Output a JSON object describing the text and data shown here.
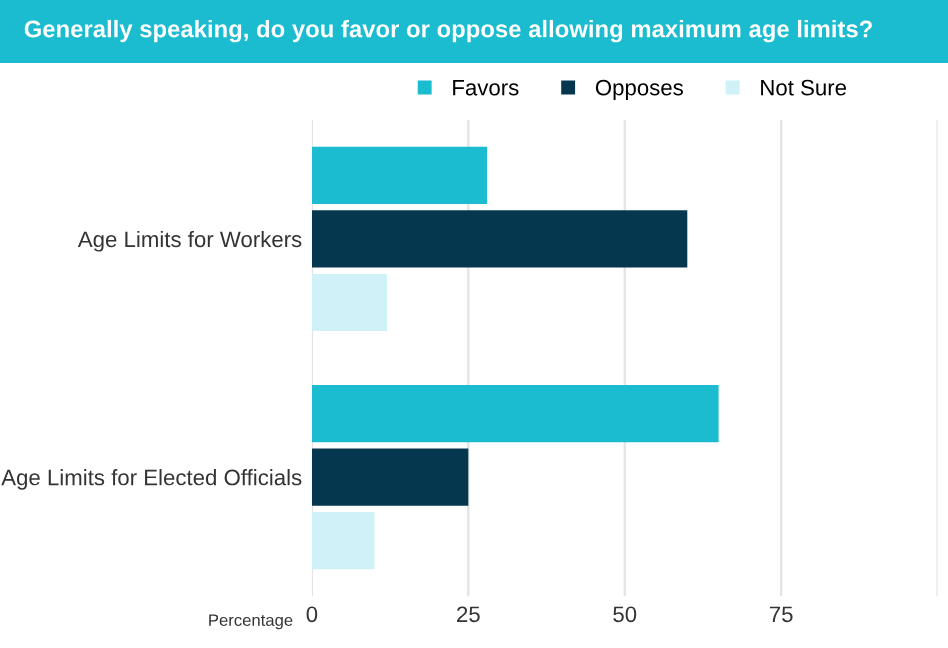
{
  "chart_data": {
    "type": "bar",
    "orientation": "horizontal",
    "title": "Generally speaking, do you favor or oppose allowing maximum age limits?",
    "xlabel": "Percentage",
    "categories": [
      "Age Limits for Workers",
      "Age Limits for Elected Officials"
    ],
    "series": [
      {
        "name": "Favors",
        "color": "#1bbccf",
        "values": [
          28,
          65
        ]
      },
      {
        "name": "Opposes",
        "color": "#05374f",
        "values": [
          60,
          25
        ]
      },
      {
        "name": "Not Sure",
        "color": "#d0f1f7",
        "values": [
          12,
          10
        ]
      }
    ],
    "xlim": [
      0,
      100
    ],
    "xticks": [
      0,
      25,
      50,
      75,
      {
        "value": 100,
        "label": null
      }
    ],
    "grid": "x",
    "legend": "top",
    "marker": "square"
  }
}
